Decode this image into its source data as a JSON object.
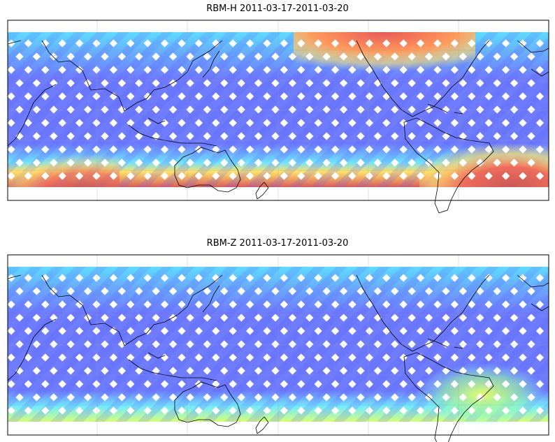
{
  "panels": [
    {
      "title": "RBM-H 2011-03-17-2011-03-20"
    },
    {
      "title": "RBM-Z 2011-03-17-2011-03-20"
    }
  ]
}
